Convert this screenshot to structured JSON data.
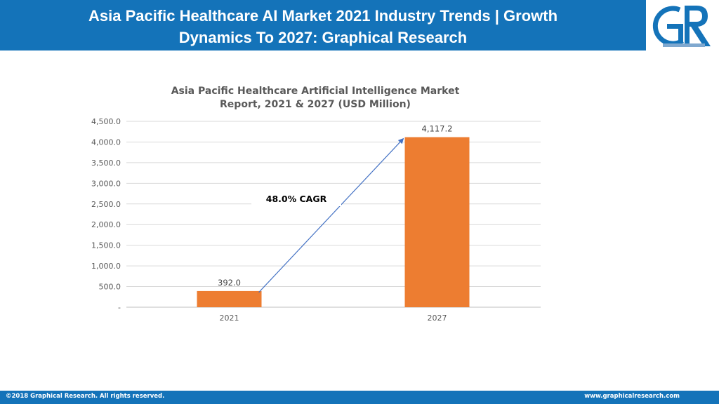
{
  "header": {
    "title_line1": "Asia Pacific Healthcare AI Market 2021 Industry Trends | Growth",
    "title_line2": "Dynamics To 2027: Graphical Research",
    "background": "#1473b9",
    "logo_icon": "graphical-research-logo",
    "logo_color": "#1473b9"
  },
  "footer": {
    "copyright": "©2018 Graphical Research. All rights reserved.",
    "website": "www.graphicalresearch.com"
  },
  "chart_data": {
    "type": "bar",
    "title_line1": "Asia Pacific Healthcare Artificial Intelligence Market",
    "title_line2": "Report, 2021 & 2027 (USD Million)",
    "categories": [
      "2021",
      "2027"
    ],
    "values": [
      392.0,
      4117.2
    ],
    "data_labels": [
      "392.0",
      "4,117.2"
    ],
    "ylim": [
      0,
      4500
    ],
    "yticks": [
      0,
      500,
      1000,
      1500,
      2000,
      2500,
      3000,
      3500,
      4000,
      4500
    ],
    "ytick_labels": [
      "-",
      "500.0",
      "1,000.0",
      "1,500.0",
      "2,000.0",
      "2,500.0",
      "3,000.0",
      "3,500.0",
      "4,000.0",
      "4,500.0"
    ],
    "grid": true,
    "bar_color": "#ed7d31",
    "annotation": {
      "text": "48.0% CAGR",
      "arrow": {
        "from": {
          "category": "2021",
          "value": 392.0
        },
        "to": {
          "category": "2027",
          "value": 4117.2
        }
      },
      "arrow_color": "#4472c4"
    }
  }
}
